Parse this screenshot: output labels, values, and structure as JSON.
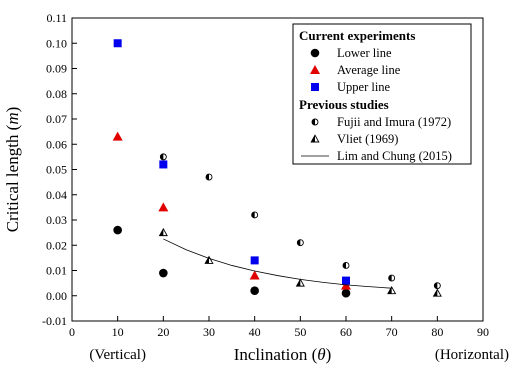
{
  "chart_data": {
    "type": "scatter",
    "xlabel": "Inclination (θ)",
    "ylabel": "Critical length (m)",
    "xlim": [
      0,
      90
    ],
    "ylim": [
      -0.01,
      0.11
    ],
    "x_ticks": [
      "0",
      "10",
      "20",
      "30",
      "40",
      "50",
      "60",
      "70",
      "80",
      "90"
    ],
    "y_ticks": [
      "-0.01",
      "0.00",
      "0.01",
      "0.02",
      "0.03",
      "0.04",
      "0.05",
      "0.06",
      "0.07",
      "0.08",
      "0.09",
      "0.10",
      "0.11"
    ],
    "x_annotations": [
      {
        "text": "(Vertical)",
        "x": 10
      },
      {
        "text": "(Horizontal)",
        "x": 90
      }
    ],
    "legend": {
      "position": "top-right",
      "groups": [
        {
          "title": "Current experiments",
          "entries": [
            {
              "name": "Lower line",
              "marker": "circle",
              "color": "#000000"
            },
            {
              "name": "Average line",
              "marker": "triangle",
              "color": "#e00000"
            },
            {
              "name": "Upper line",
              "marker": "square",
              "color": "#0000ee"
            }
          ]
        },
        {
          "title": "Previous studies",
          "entries": [
            {
              "name": "Fujii and Imura (1972)",
              "marker": "half-circle",
              "color": "#000000"
            },
            {
              "name": "Vliet (1969)",
              "marker": "half-triangle",
              "color": "#000000"
            },
            {
              "name": "Lim and Chung (2015)",
              "marker": "line",
              "color": "#000000"
            }
          ]
        }
      ]
    },
    "series": [
      {
        "name": "Lower line",
        "marker": "circle",
        "color": "#000000",
        "points": [
          [
            10,
            0.026
          ],
          [
            20,
            0.009
          ],
          [
            40,
            0.002
          ],
          [
            60,
            0.001
          ]
        ]
      },
      {
        "name": "Average line",
        "marker": "triangle",
        "color": "#e00000",
        "points": [
          [
            10,
            0.063
          ],
          [
            20,
            0.035
          ],
          [
            40,
            0.008
          ],
          [
            60,
            0.004
          ]
        ]
      },
      {
        "name": "Upper line",
        "marker": "square",
        "color": "#0000ee",
        "points": [
          [
            10,
            0.1
          ],
          [
            20,
            0.052
          ],
          [
            40,
            0.014
          ],
          [
            60,
            0.006
          ]
        ]
      },
      {
        "name": "Fujii and Imura (1972)",
        "marker": "half-circle",
        "color": "#000000",
        "points": [
          [
            20,
            0.055
          ],
          [
            30,
            0.047
          ],
          [
            40,
            0.032
          ],
          [
            50,
            0.021
          ],
          [
            60,
            0.012
          ],
          [
            70,
            0.007
          ],
          [
            80,
            0.004
          ]
        ]
      },
      {
        "name": "Vliet (1969)",
        "marker": "half-triangle",
        "color": "#000000",
        "points": [
          [
            20,
            0.025
          ],
          [
            30,
            0.014
          ],
          [
            50,
            0.005
          ],
          [
            70,
            0.002
          ],
          [
            80,
            0.001
          ]
        ]
      },
      {
        "name": "Lim and Chung (2015)",
        "marker": "line",
        "color": "#000000",
        "points": [
          [
            20,
            0.0225
          ],
          [
            25,
            0.0182
          ],
          [
            30,
            0.0148
          ],
          [
            35,
            0.012
          ],
          [
            40,
            0.0098
          ],
          [
            45,
            0.008
          ],
          [
            50,
            0.0065
          ],
          [
            55,
            0.0053
          ],
          [
            60,
            0.0043
          ],
          [
            65,
            0.0036
          ],
          [
            70,
            0.003
          ]
        ]
      }
    ]
  }
}
